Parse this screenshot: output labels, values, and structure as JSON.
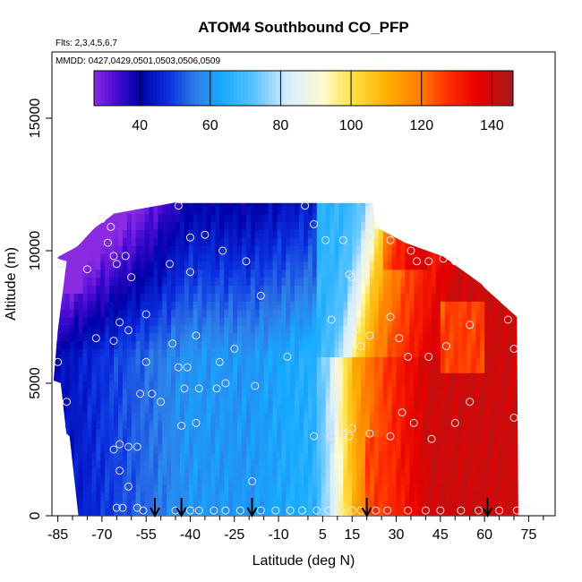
{
  "chart_data": {
    "type": "heatmap",
    "title": "ATOM4 Southbound CO_PFP",
    "subtitle": "Flts: 2,3,4,5,6,7",
    "annotation": "MMDD: 0427,0429,0501,0503,0506,0509",
    "xlabel": "Latitude (deg N)",
    "ylabel": "Altitude (m)",
    "xlim": [
      -87,
      84
    ],
    "ylim": [
      0,
      17500
    ],
    "x_ticks": [
      -85,
      -70,
      -55,
      -40,
      -25,
      -10,
      5,
      15,
      30,
      45,
      60,
      75
    ],
    "x_minor_ticks": [
      -80,
      -75,
      -65,
      -60,
      -50,
      -45,
      -35,
      -30,
      -20,
      -15,
      0,
      10,
      20,
      25,
      35,
      40,
      50,
      55,
      65,
      70,
      80
    ],
    "y_ticks": [
      0,
      5000,
      10000,
      15000
    ],
    "colorbar": {
      "range": [
        27,
        146
      ],
      "ticks": [
        40,
        60,
        80,
        100,
        120,
        140
      ],
      "stops": [
        {
          "v": 27,
          "c": "#8a2be2"
        },
        {
          "v": 33,
          "c": "#4b0bd6"
        },
        {
          "v": 40,
          "c": "#0000a8"
        },
        {
          "v": 48,
          "c": "#0a2fe0"
        },
        {
          "v": 56,
          "c": "#2f7de8"
        },
        {
          "v": 63,
          "c": "#15a9ff"
        },
        {
          "v": 72,
          "c": "#55c1ff"
        },
        {
          "v": 82,
          "c": "#d6ecff"
        },
        {
          "v": 92,
          "c": "#fffbd0"
        },
        {
          "v": 100,
          "c": "#ffe24a"
        },
        {
          "v": 110,
          "c": "#ffb000"
        },
        {
          "v": 120,
          "c": "#ff7a00"
        },
        {
          "v": 128,
          "c": "#ff2a00"
        },
        {
          "v": 136,
          "c": "#e60000"
        },
        {
          "v": 146,
          "c": "#a51a1a"
        }
      ]
    },
    "profile_arrows_lat": [
      -52,
      -43,
      -19,
      20,
      61
    ],
    "samples": [
      [
        -84,
        9500
      ],
      [
        -85,
        5800
      ],
      [
        -82,
        4300
      ],
      [
        -75,
        9300
      ],
      [
        -70,
        11200
      ],
      [
        -68,
        10300
      ],
      [
        -66,
        9800
      ],
      [
        -67,
        10900
      ],
      [
        -65,
        9500
      ],
      [
        -62,
        9800
      ],
      [
        -60,
        9000
      ],
      [
        -72,
        6700
      ],
      [
        -66,
        6600
      ],
      [
        -64,
        7300
      ],
      [
        -61,
        7000
      ],
      [
        -55,
        7600
      ],
      [
        -44,
        11700
      ],
      [
        -40,
        10500
      ],
      [
        -35,
        10600
      ],
      [
        -29,
        10000
      ],
      [
        -21,
        9600
      ],
      [
        -16,
        8300
      ],
      [
        -40,
        9200
      ],
      [
        -47,
        9500
      ],
      [
        -46,
        6500
      ],
      [
        -38,
        6800
      ],
      [
        -44,
        5600
      ],
      [
        -41,
        5600
      ],
      [
        -42,
        4800
      ],
      [
        -37,
        4800
      ],
      [
        -31,
        4800
      ],
      [
        -30,
        5800
      ],
      [
        -25,
        6300
      ],
      [
        -18,
        4900
      ],
      [
        -55,
        5800
      ],
      [
        -57,
        4600
      ],
      [
        -53,
        4600
      ],
      [
        -50,
        4300
      ],
      [
        -43,
        3400
      ],
      [
        -38,
        3500
      ],
      [
        -66,
        2500
      ],
      [
        -64,
        2700
      ],
      [
        -61,
        2600
      ],
      [
        -58,
        2600
      ],
      [
        -64,
        1700
      ],
      [
        -61,
        1100
      ],
      [
        -65,
        300
      ],
      [
        -63,
        300
      ],
      [
        -58,
        300
      ],
      [
        -56,
        200
      ],
      [
        -45,
        200
      ],
      [
        -40,
        200
      ],
      [
        -37,
        200
      ],
      [
        -32,
        200
      ],
      [
        -28,
        200
      ],
      [
        -23,
        200
      ],
      [
        -16,
        200
      ],
      [
        -11,
        200
      ],
      [
        -6,
        200
      ],
      [
        -2,
        200
      ],
      [
        3,
        200
      ],
      [
        7,
        200
      ],
      [
        11,
        200
      ],
      [
        15,
        200
      ],
      [
        18,
        200
      ],
      [
        23,
        200
      ],
      [
        27,
        200
      ],
      [
        34,
        200
      ],
      [
        40,
        200
      ],
      [
        45,
        200
      ],
      [
        52,
        200
      ],
      [
        58,
        200
      ],
      [
        65,
        200
      ],
      [
        71,
        200
      ],
      [
        -1,
        11700
      ],
      [
        2,
        11000
      ],
      [
        6,
        10400
      ],
      [
        12,
        10400
      ],
      [
        14,
        9100
      ],
      [
        15,
        9000
      ],
      [
        17,
        9000
      ],
      [
        20,
        10500
      ],
      [
        28,
        10400
      ],
      [
        35,
        10000
      ],
      [
        37,
        9600
      ],
      [
        41,
        9600
      ],
      [
        46,
        9700
      ],
      [
        50,
        9600
      ],
      [
        28,
        7500
      ],
      [
        21,
        6800
      ],
      [
        8,
        7400
      ],
      [
        15,
        6800
      ],
      [
        18,
        6400
      ],
      [
        -7,
        6000
      ],
      [
        31,
        6700
      ],
      [
        34,
        6000
      ],
      [
        41,
        6000
      ],
      [
        47,
        6400
      ],
      [
        55,
        7200
      ],
      [
        68,
        7400
      ],
      [
        70,
        6300
      ],
      [
        32,
        3900
      ],
      [
        36,
        3500
      ],
      [
        42,
        2900
      ],
      [
        50,
        3500
      ],
      [
        55,
        4300
      ],
      [
        70,
        3700
      ],
      [
        2,
        3000
      ],
      [
        8,
        3000
      ],
      [
        12,
        3100
      ],
      [
        14,
        3000
      ],
      [
        15,
        3300
      ],
      [
        21,
        3100
      ],
      [
        28,
        3000
      ],
      [
        -19,
        1300
      ],
      [
        -28,
        5000
      ]
    ]
  }
}
